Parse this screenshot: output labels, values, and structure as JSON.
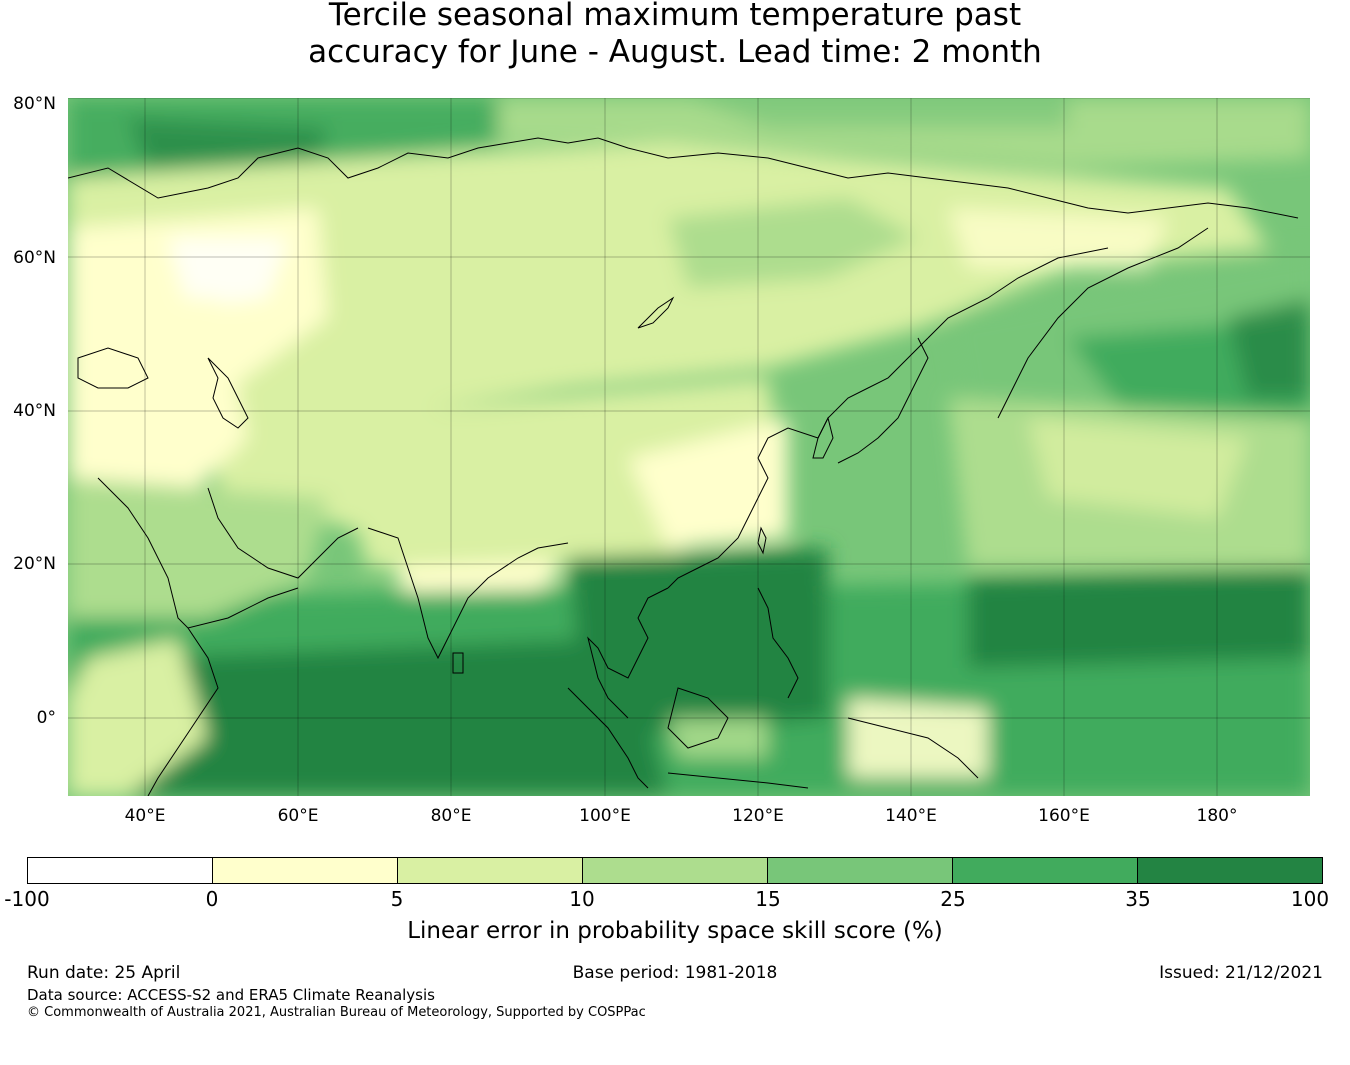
{
  "title": {
    "line1": "Tercile seasonal maximum temperature past",
    "line2": "accuracy for June - August. Lead time: 2 month"
  },
  "map": {
    "lat_labels": [
      "80°N",
      "60°N",
      "40°N",
      "20°N",
      "0°"
    ],
    "lon_labels": [
      "40°E",
      "60°E",
      "80°E",
      "100°E",
      "120°E",
      "140°E",
      "160°E",
      "180°"
    ],
    "lat_range": [
      -10,
      80
    ],
    "lon_range": [
      30,
      192
    ],
    "gridlines": true,
    "base_color": "#78c679",
    "coastline_color": "#000000"
  },
  "colorbar": {
    "tick_labels": [
      "-100",
      "0",
      "5",
      "10",
      "15",
      "25",
      "35",
      "100"
    ],
    "colors": [
      "#ffffff",
      "#ffffcc",
      "#d9f0a3",
      "#addd8e",
      "#78c679",
      "#41ab5d",
      "#238443"
    ],
    "label": "Linear error in probability space skill score (%)"
  },
  "footer": {
    "run_date": "Run date: 25 April",
    "base_period": "Base period: 1981-2018",
    "issued": "Issued: 21/12/2021",
    "data_source": "Data source: ACCESS-S2 and ERA5 Climate Reanalysis",
    "copyright": "© Commonwealth of Australia 2021, Australian Bureau of Meteorology, Supported by COSPPac"
  }
}
